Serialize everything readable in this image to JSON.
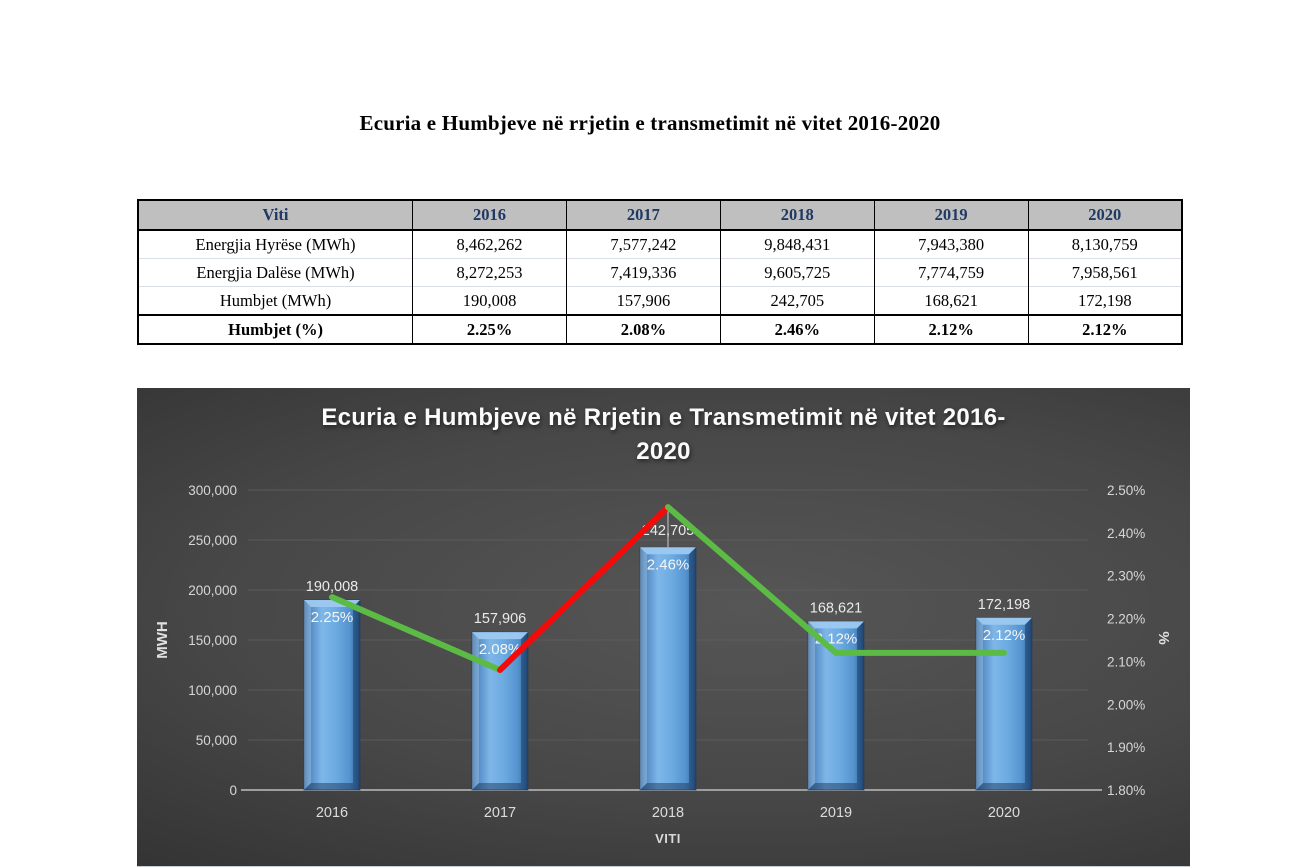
{
  "page": {
    "title": "Ecuria e Humbjeve në rrjetin e transmetimit në vitet 2016-2020"
  },
  "table": {
    "header": [
      "Viti",
      "2016",
      "2017",
      "2018",
      "2019",
      "2020"
    ],
    "rows": [
      {
        "label": "Energjia Hyrëse (MWh)",
        "values": [
          "8,462,262",
          "7,577,242",
          "9,848,431",
          "7,943,380",
          "8,130,759"
        ]
      },
      {
        "label": "Energjia Dalëse (MWh)",
        "values": [
          "8,272,253",
          "7,419,336",
          "9,605,725",
          "7,774,759",
          "7,958,561"
        ]
      },
      {
        "label": "Humbjet (MWh)",
        "values": [
          "190,008",
          "157,906",
          "242,705",
          "168,621",
          "172,198"
        ]
      },
      {
        "label": "Humbjet (%)",
        "values": [
          "2.25%",
          "2.08%",
          "2.46%",
          "2.12%",
          "2.12%"
        ]
      }
    ]
  },
  "chart_data": {
    "type": "bar+line combo",
    "title_line1": "Ecuria e Humbjeve në Rrjetin e Transmetimit në vitet 2016-",
    "title_line2": "2020",
    "categories": [
      "2016",
      "2017",
      "2018",
      "2019",
      "2020"
    ],
    "series": [
      {
        "name": "Humbjet (MWh)",
        "type": "bar",
        "axis": "left",
        "values": [
          190008,
          157906,
          242705,
          168621,
          172198
        ],
        "labels": [
          "190,008",
          "157,906",
          "242,705",
          "168,621",
          "172,198"
        ],
        "color": "#5B9BD5"
      },
      {
        "name": "Humbjet (%)",
        "type": "line",
        "axis": "right",
        "values": [
          2.25,
          2.08,
          2.46,
          2.12,
          2.12
        ],
        "labels": [
          "2.25%",
          "2.08%",
          "2.46%",
          "2.12%",
          "2.12%"
        ],
        "segment_colors": [
          "#5CBB45",
          "#F50A0A",
          "#5CBB45",
          "#5CBB45"
        ]
      }
    ],
    "left_axis": {
      "label": "MWH",
      "min": 0,
      "max": 300000,
      "ticks": [
        "300,000",
        "250,000",
        "200,000",
        "150,000",
        "100,000",
        "50,000",
        "0"
      ]
    },
    "right_axis": {
      "label": "%",
      "min": 1.8,
      "max": 2.5,
      "ticks": [
        "2.50%",
        "2.40%",
        "2.30%",
        "2.20%",
        "2.10%",
        "2.00%",
        "1.90%",
        "1.80%"
      ]
    },
    "x_axis": {
      "label": "VITI"
    },
    "grid": true,
    "legend": "none",
    "colors": {
      "bar": "#5B9BD5",
      "bar_light": "#9CC9F0",
      "bar_dark": "#36679A",
      "line_green": "#5CBB45",
      "line_red": "#F50A0A",
      "chart_bg_center": "#565656",
      "chart_bg_edge": "#262626",
      "table_header_bg": "#BFBFBF",
      "table_header_text": "#1F3864"
    }
  }
}
